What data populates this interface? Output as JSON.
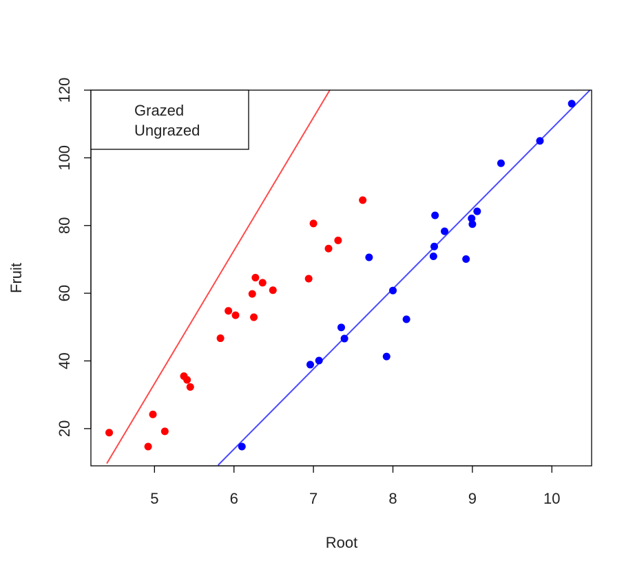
{
  "chart_data": {
    "type": "scatter",
    "title": "",
    "xlabel": "Root",
    "ylabel": "Fruit",
    "xlim": [
      4.2,
      10.5
    ],
    "ylim": [
      9,
      120
    ],
    "x_ticks": [
      "5",
      "6",
      "7",
      "8",
      "9",
      "10"
    ],
    "y_ticks": [
      "20",
      "40",
      "60",
      "80",
      "100",
      "120"
    ],
    "grid": false,
    "legend": {
      "position": "top-left",
      "entries": [
        "Grazed",
        "Ungrazed"
      ]
    },
    "series": [
      {
        "name": "Grazed",
        "color": "#ff0000",
        "line_color": "#ff4a4a",
        "points": [
          {
            "x": 4.43,
            "y": 18.8
          },
          {
            "x": 4.92,
            "y": 14.7
          },
          {
            "x": 4.98,
            "y": 24.2
          },
          {
            "x": 5.13,
            "y": 19.2
          },
          {
            "x": 5.37,
            "y": 35.5
          },
          {
            "x": 5.41,
            "y": 34.4
          },
          {
            "x": 5.45,
            "y": 32.3
          },
          {
            "x": 5.83,
            "y": 46.7
          },
          {
            "x": 5.93,
            "y": 54.8
          },
          {
            "x": 6.02,
            "y": 53.5
          },
          {
            "x": 6.23,
            "y": 59.8
          },
          {
            "x": 6.25,
            "y": 52.9
          },
          {
            "x": 6.27,
            "y": 64.6
          },
          {
            "x": 6.36,
            "y": 63.1
          },
          {
            "x": 6.49,
            "y": 60.9
          },
          {
            "x": 6.94,
            "y": 64.3
          },
          {
            "x": 7.0,
            "y": 80.6
          },
          {
            "x": 7.19,
            "y": 73.2
          },
          {
            "x": 7.31,
            "y": 75.6
          },
          {
            "x": 7.62,
            "y": 87.5
          }
        ],
        "fit": {
          "x": [
            4.4,
            10.5
          ],
          "y": [
            9.7,
            249.5
          ]
        }
      },
      {
        "name": "Ungrazed",
        "color": "#0000ff",
        "line_color": "#4a4aff",
        "points": [
          {
            "x": 6.1,
            "y": 14.7
          },
          {
            "x": 6.96,
            "y": 38.9
          },
          {
            "x": 7.07,
            "y": 40.1
          },
          {
            "x": 7.35,
            "y": 49.9
          },
          {
            "x": 7.39,
            "y": 46.6
          },
          {
            "x": 7.7,
            "y": 70.6
          },
          {
            "x": 7.92,
            "y": 41.3
          },
          {
            "x": 8.0,
            "y": 60.8
          },
          {
            "x": 8.17,
            "y": 52.3
          },
          {
            "x": 8.51,
            "y": 70.9
          },
          {
            "x": 8.52,
            "y": 73.8
          },
          {
            "x": 8.53,
            "y": 83.0
          },
          {
            "x": 8.65,
            "y": 78.3
          },
          {
            "x": 8.92,
            "y": 70.1
          },
          {
            "x": 8.99,
            "y": 82.1
          },
          {
            "x": 9.0,
            "y": 80.4
          },
          {
            "x": 9.06,
            "y": 84.2
          },
          {
            "x": 9.36,
            "y": 98.4
          },
          {
            "x": 9.85,
            "y": 105.0
          },
          {
            "x": 10.25,
            "y": 116.0
          }
        ],
        "fit": {
          "x": [
            5.8,
            10.5
          ],
          "y": [
            9.2,
            120.5
          ]
        }
      }
    ]
  }
}
